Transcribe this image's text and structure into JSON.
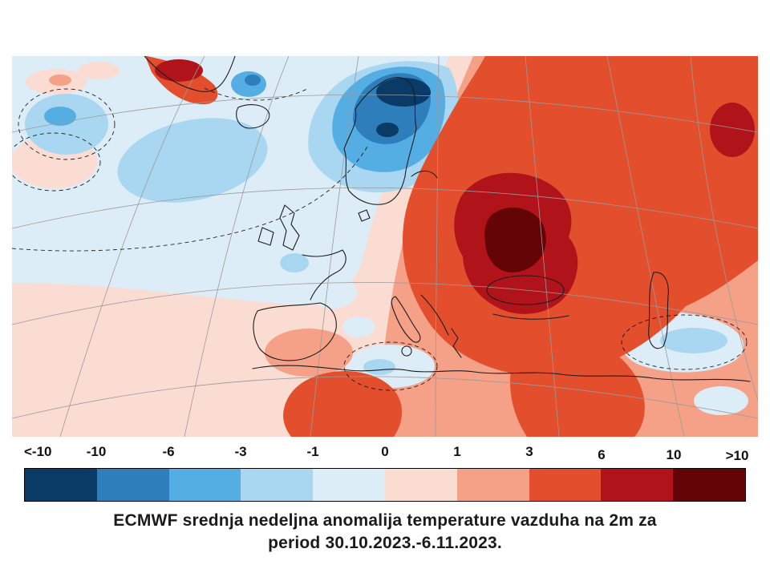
{
  "legend": {
    "tick_labels": [
      "<-10",
      "-10",
      "-6",
      "-3",
      "-1",
      "0",
      "1",
      "3",
      "6",
      "10",
      ">10"
    ],
    "segments": [
      {
        "range": "< -10",
        "color": "#0a3a66"
      },
      {
        "range": "-10 to -6",
        "color": "#2e7ebc"
      },
      {
        "range": "-6 to -3",
        "color": "#54aee4"
      },
      {
        "range": "-3 to -1",
        "color": "#a9d7f1"
      },
      {
        "range": "-1 to 0",
        "color": "#dcedf8"
      },
      {
        "range": "0 to 1",
        "color": "#fbdcd3"
      },
      {
        "range": "1 to 3",
        "color": "#f5a188"
      },
      {
        "range": "3 to 6",
        "color": "#e34f2d"
      },
      {
        "range": "6 to 10",
        "color": "#b1131a"
      },
      {
        "range": "> 10",
        "color": "#650407"
      }
    ]
  },
  "caption": {
    "line1": "ECMWF srednja nedeljna anomalija temperature vazduha na 2m za",
    "line2": "period 30.10.2023.-6.11.2023."
  },
  "map": {
    "name": "ECMWF weekly mean 2m air temperature anomaly, Europe / North Atlantic",
    "colors": {
      "coastline": "#1c1c1c",
      "graticule": "#9a9a9a",
      "contour": "#000000"
    }
  }
}
